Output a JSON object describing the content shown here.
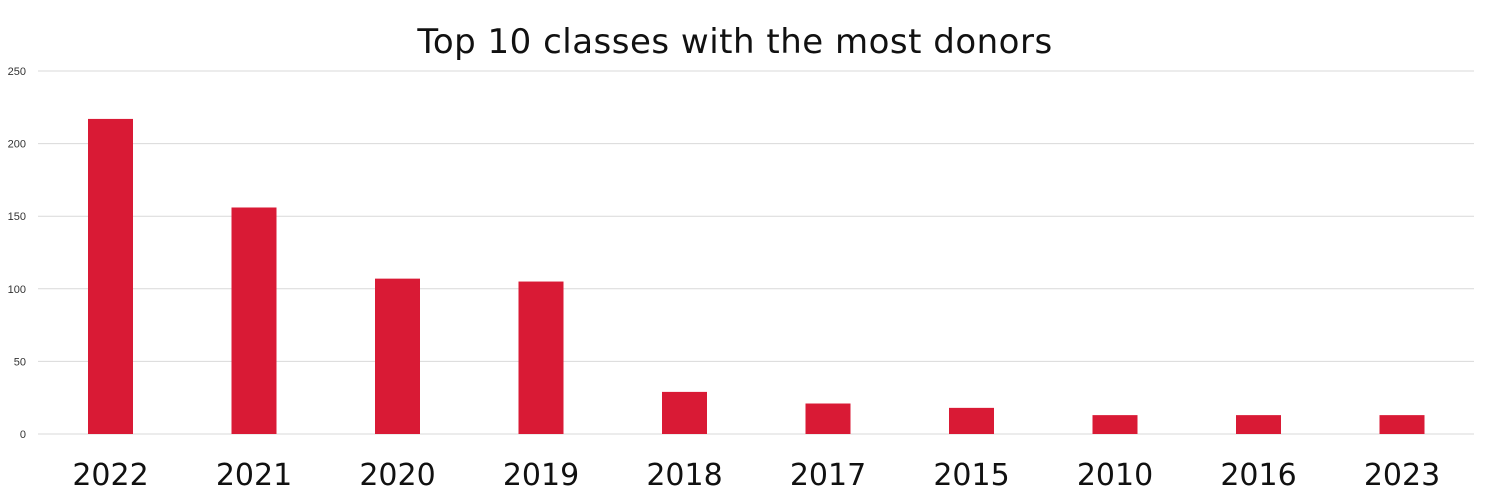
{
  "chart_data": {
    "type": "bar",
    "title": "Top 10 classes with the most donors",
    "xlabel": "",
    "ylabel": "",
    "categories": [
      "2022",
      "2021",
      "2020",
      "2019",
      "2018",
      "2017",
      "2015",
      "2010",
      "2016",
      "2023"
    ],
    "values": [
      217,
      156,
      107,
      105,
      29,
      21,
      18,
      13,
      13,
      13
    ],
    "ylim": [
      0,
      250
    ],
    "yticks": [
      0,
      50,
      100,
      150,
      200,
      250
    ],
    "grid": true,
    "legend": "none",
    "bar_color": "#d91a35"
  }
}
